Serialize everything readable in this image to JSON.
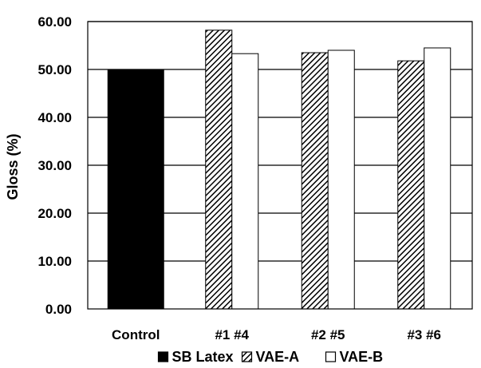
{
  "chart_data": {
    "type": "bar",
    "title": "",
    "xlabel": "",
    "ylabel": "Gloss (%)",
    "ylim": [
      0,
      60
    ],
    "yticks": [
      "0.00",
      "10.00",
      "20.00",
      "30.00",
      "40.00",
      "50.00",
      "60.00"
    ],
    "grid": true,
    "legend_position": "bottom",
    "categories": [
      "Control",
      "#1 #4",
      "#2 #5",
      "#3 #6"
    ],
    "series": [
      {
        "name": "SB Latex",
        "fill": "solid",
        "color": "#000000",
        "values": [
          50.0,
          null,
          null,
          null
        ]
      },
      {
        "name": "VAE-A",
        "fill": "hatched",
        "color": "#000000",
        "values": [
          null,
          58.2,
          53.5,
          51.8
        ]
      },
      {
        "name": "VAE-B",
        "fill": "hollow",
        "color": "#ffffff",
        "values": [
          null,
          53.3,
          54.0,
          54.5
        ]
      }
    ]
  }
}
